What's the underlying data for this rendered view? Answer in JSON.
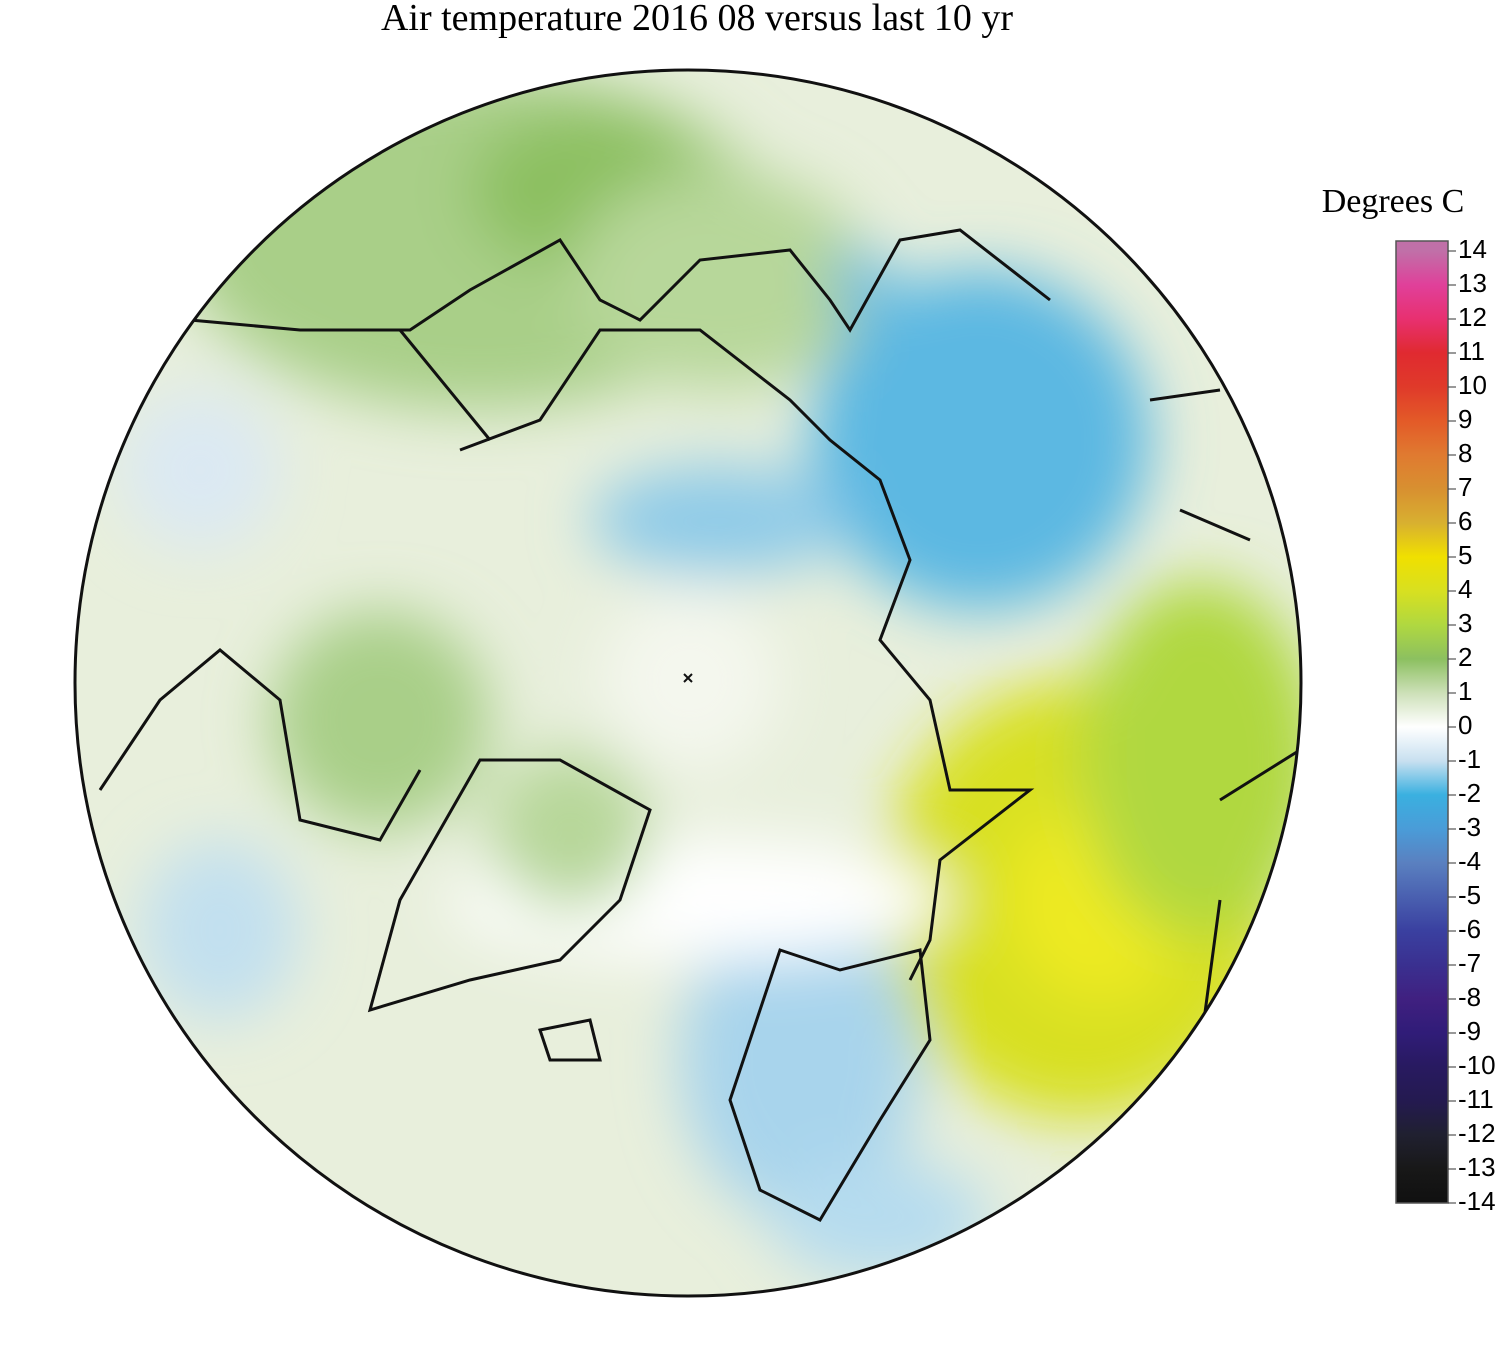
{
  "title": "Air temperature 2016 08 versus last 10 yr",
  "colorbar": {
    "label": "Degrees C",
    "ticks": [
      14,
      13,
      12,
      11,
      10,
      9,
      8,
      7,
      6,
      5,
      4,
      3,
      2,
      1,
      0,
      -1,
      -2,
      -3,
      -4,
      -5,
      -6,
      -7,
      -8,
      -9,
      -10,
      -11,
      -12,
      -13,
      -14
    ],
    "colors": [
      "#c070a8",
      "#e0409a",
      "#e83070",
      "#e02a30",
      "#e03a2a",
      "#e35a28",
      "#e07a30",
      "#d89030",
      "#d8b030",
      "#f0e000",
      "#d8e020",
      "#b0d840",
      "#8cc060",
      "#cde0b8",
      "#ffffff",
      "#c8e0f0",
      "#3ab0e0",
      "#4a9cd8",
      "#5a80c0",
      "#4a60b0",
      "#3a40a0",
      "#3a3090",
      "#402080",
      "#301c78",
      "#281a60",
      "#241a50",
      "#202030",
      "#181818",
      "#101010"
    ]
  }
}
